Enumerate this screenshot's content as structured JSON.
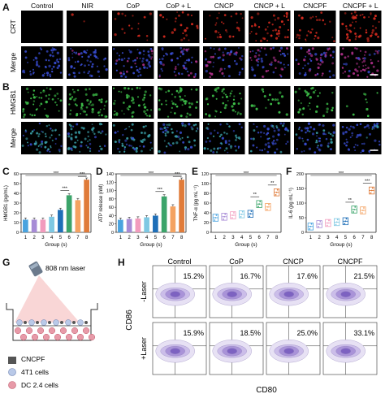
{
  "panels": {
    "A": "A",
    "B": "B",
    "C": "C",
    "D": "D",
    "E": "E",
    "F": "F",
    "G": "G",
    "H": "H"
  },
  "groups_header": [
    "Control",
    "NIR",
    "CoP",
    "CoP + L",
    "CNCP",
    "CNCP + L",
    "CNCPF",
    "CNCPF + L"
  ],
  "row_labels": {
    "crt": "CRT",
    "merge_a": "Merge",
    "hmgb1": "HMGB1",
    "merge_b": "Merge"
  },
  "colors": {
    "crt": "#d42a1e",
    "hmgb1": "#3ec24a",
    "dapi": "#3a4fd8",
    "bar_palette": [
      "#4aa3df",
      "#a78bd6",
      "#f29bbd",
      "#7ec8e3",
      "#1f6fb8",
      "#3ba46a",
      "#f4a261",
      "#e07b39"
    ]
  },
  "chart_data": [
    {
      "type": "bar",
      "ylabel": "HMGB1 (pg/mL)",
      "xlabel": "Group (s)",
      "categories": [
        "1",
        "2",
        "3",
        "4",
        "5",
        "6",
        "7",
        "8"
      ],
      "ylim": [
        0,
        60
      ],
      "yticks": [
        "0",
        "10",
        "20",
        "30",
        "40",
        "50",
        "60"
      ],
      "values": [
        13,
        13,
        13,
        16,
        23,
        38,
        33,
        54
      ],
      "sig": [
        "***",
        "***"
      ]
    },
    {
      "type": "bar",
      "ylabel": "ATP release (nM)",
      "xlabel": "Group (s)",
      "categories": [
        "1",
        "2",
        "3",
        "4",
        "5",
        "6",
        "7",
        "8"
      ],
      "ylim": [
        0,
        140
      ],
      "yticks": [
        "0",
        "20",
        "40",
        "60",
        "80",
        "100",
        "120",
        "140"
      ],
      "values": [
        30,
        32,
        33,
        36,
        40,
        86,
        62,
        126
      ],
      "sig": [
        "***",
        "***"
      ]
    },
    {
      "type": "scatter",
      "ylabel": "TNF-α (pg mL⁻¹)",
      "xlabel": "Group (s)",
      "categories": [
        "1",
        "2",
        "3",
        "4",
        "5",
        "6",
        "7",
        "8"
      ],
      "ylim": [
        0,
        120
      ],
      "yticks": [
        "0",
        "20",
        "40",
        "60",
        "80",
        "100",
        "120"
      ],
      "values": [
        30,
        32,
        35,
        37,
        38,
        58,
        52,
        82
      ],
      "sig": [
        "***",
        "**",
        "**"
      ]
    },
    {
      "type": "scatter",
      "ylabel": "IL-6 (pg mL⁻¹)",
      "xlabel": "Group (s)",
      "categories": [
        "1",
        "2",
        "3",
        "4",
        "5",
        "6",
        "7",
        "8"
      ],
      "ylim": [
        0,
        200
      ],
      "yticks": [
        "0",
        "50",
        "100",
        "150",
        "200"
      ],
      "values": [
        20,
        28,
        32,
        35,
        38,
        78,
        75,
        143
      ],
      "sig": [
        "***",
        "**",
        "***"
      ]
    }
  ],
  "schematic": {
    "laser": "808 nm laser",
    "legend": [
      "CNCPF",
      "4T1 cells",
      "DC 2.4 cells"
    ]
  },
  "flow": {
    "cols": [
      "Control",
      "CoP",
      "CNCP",
      "CNCPF"
    ],
    "rows": [
      "-Laser",
      "+Laser"
    ],
    "pct": [
      [
        "15.2%",
        "16.7%",
        "17.6%",
        "21.5%"
      ],
      [
        "15.9%",
        "18.5%",
        "25.0%",
        "33.1%"
      ]
    ],
    "ylabel": "CD86",
    "xlabel": "CD80"
  }
}
